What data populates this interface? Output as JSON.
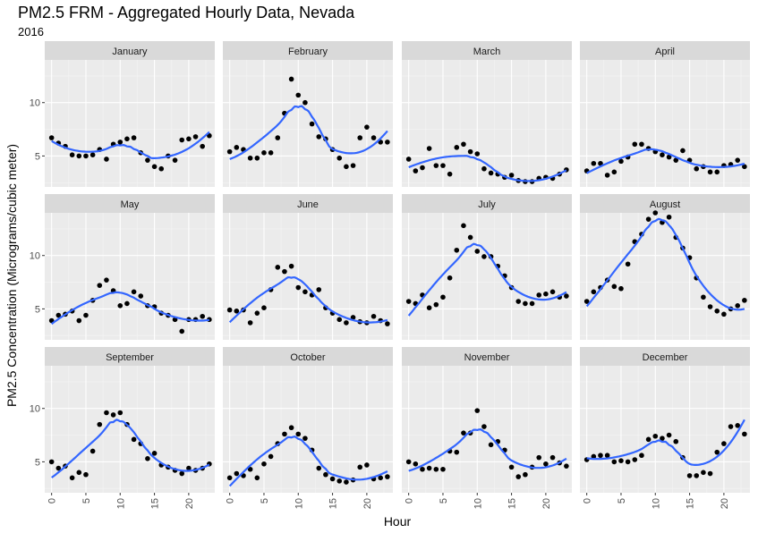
{
  "colors": {
    "panel_bg": "#ebebeb",
    "strip_bg": "#d9d9d9",
    "grid_major": "#ffffff",
    "point": "#000000",
    "smooth_line": "#3366ff",
    "text": "#000000",
    "tick_text": "#4d4d4d"
  },
  "chart_data": {
    "type": "scatter",
    "title": "PM2.5 FRM - Aggregated Hourly Data, Nevada",
    "subtitle": "2016",
    "xlabel": "Hour",
    "ylabel": "PM2.5 Concentration (Micrograms/cubic meter)",
    "xlim": [
      -1,
      23.8
    ],
    "ylim": [
      2.1,
      14.0
    ],
    "x_ticks": [
      0,
      5,
      10,
      15,
      20
    ],
    "y_ticks": [
      5,
      10
    ],
    "x_tick_labels": [
      "0",
      "5",
      "10",
      "15",
      "20"
    ],
    "y_tick_labels": [
      "5",
      "10"
    ],
    "grid": true,
    "smoother": "loess",
    "x": [
      0,
      1,
      2,
      3,
      4,
      5,
      6,
      7,
      8,
      9,
      10,
      11,
      12,
      13,
      14,
      15,
      16,
      17,
      18,
      19,
      20,
      21,
      22,
      23
    ],
    "panels": [
      {
        "name": "January",
        "values": [
          6.7,
          6.2,
          5.9,
          5.1,
          5.0,
          5.0,
          5.1,
          5.6,
          4.7,
          6.1,
          6.3,
          6.6,
          6.7,
          5.3,
          4.6,
          4.0,
          3.8,
          5.0,
          4.6,
          6.5,
          6.6,
          6.8,
          5.9,
          6.9
        ]
      },
      {
        "name": "February",
        "values": [
          5.4,
          5.8,
          5.6,
          4.8,
          4.8,
          5.3,
          5.3,
          6.7,
          9.0,
          12.2,
          10.7,
          10.0,
          8.0,
          6.8,
          6.6,
          5.6,
          4.8,
          4.0,
          4.1,
          6.7,
          7.7,
          6.7,
          6.3,
          6.3
        ]
      },
      {
        "name": "March",
        "values": [
          4.7,
          3.6,
          3.9,
          5.7,
          4.1,
          4.1,
          3.3,
          5.8,
          6.1,
          5.4,
          5.2,
          3.8,
          3.4,
          3.3,
          3.0,
          3.2,
          2.7,
          2.6,
          2.6,
          2.9,
          3.0,
          2.9,
          3.3,
          3.7
        ]
      },
      {
        "name": "April",
        "values": [
          3.6,
          4.3,
          4.3,
          3.2,
          3.5,
          4.5,
          4.9,
          6.1,
          6.1,
          5.7,
          5.4,
          5.1,
          4.9,
          4.6,
          5.5,
          4.6,
          3.8,
          4.0,
          3.5,
          3.5,
          4.1,
          4.2,
          4.6,
          4.0
        ]
      },
      {
        "name": "May",
        "values": [
          3.9,
          4.4,
          4.5,
          4.8,
          3.9,
          4.4,
          5.8,
          7.2,
          7.7,
          6.7,
          5.3,
          5.5,
          6.6,
          6.2,
          5.3,
          5.2,
          4.6,
          4.4,
          4.0,
          2.9,
          4.0,
          4.0,
          4.3,
          4.0
        ]
      },
      {
        "name": "June",
        "values": [
          4.9,
          4.8,
          4.9,
          3.7,
          4.6,
          5.1,
          6.8,
          8.9,
          8.5,
          9.0,
          7.0,
          6.6,
          6.3,
          6.8,
          5.1,
          4.6,
          4.0,
          3.7,
          4.2,
          3.8,
          3.7,
          4.3,
          3.9,
          3.6
        ]
      },
      {
        "name": "July",
        "values": [
          5.7,
          5.5,
          6.3,
          5.1,
          5.4,
          6.1,
          7.9,
          10.5,
          12.8,
          11.7,
          10.4,
          9.9,
          9.9,
          9.0,
          8.1,
          7.0,
          5.7,
          5.5,
          5.5,
          6.3,
          6.4,
          6.6,
          6.1,
          6.2
        ]
      },
      {
        "name": "August",
        "values": [
          5.7,
          6.6,
          7.0,
          7.7,
          7.1,
          6.9,
          9.2,
          11.3,
          12.0,
          13.4,
          14.0,
          13.1,
          13.6,
          11.7,
          10.7,
          9.8,
          7.9,
          6.1,
          5.2,
          4.8,
          4.5,
          5.0,
          5.3,
          5.8
        ]
      },
      {
        "name": "September",
        "values": [
          5.0,
          4.4,
          4.6,
          3.5,
          4.0,
          3.8,
          6.0,
          8.5,
          9.6,
          9.4,
          9.6,
          8.5,
          7.1,
          6.7,
          5.3,
          5.8,
          4.7,
          4.5,
          4.2,
          3.9,
          4.4,
          4.2,
          4.4,
          4.8
        ]
      },
      {
        "name": "October",
        "values": [
          3.5,
          3.9,
          3.7,
          4.3,
          3.5,
          4.8,
          5.5,
          6.7,
          7.6,
          8.2,
          7.6,
          7.2,
          6.1,
          4.4,
          3.8,
          3.4,
          3.2,
          3.1,
          3.3,
          4.5,
          4.7,
          3.4,
          3.5,
          3.6
        ]
      },
      {
        "name": "November",
        "values": [
          5.0,
          4.8,
          4.3,
          4.4,
          4.3,
          4.3,
          6.0,
          5.9,
          7.7,
          7.7,
          9.8,
          8.3,
          6.6,
          6.9,
          6.1,
          4.5,
          3.6,
          3.8,
          4.5,
          5.4,
          4.8,
          5.4,
          4.9,
          4.6
        ]
      },
      {
        "name": "December",
        "values": [
          5.2,
          5.5,
          5.6,
          5.6,
          5.0,
          5.1,
          5.0,
          5.2,
          5.6,
          7.1,
          7.4,
          7.2,
          7.5,
          6.9,
          5.4,
          3.7,
          3.7,
          4.0,
          3.9,
          5.9,
          6.7,
          8.3,
          8.4,
          7.6
        ]
      }
    ]
  }
}
